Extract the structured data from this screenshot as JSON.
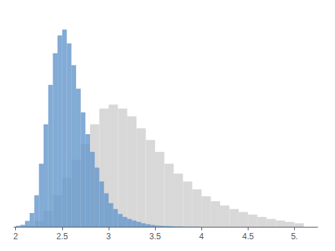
{
  "chart_data": {
    "type": "histogram",
    "series": [
      {
        "color": "#d8d8d8",
        "bins": [
          2.0,
          2.1,
          2.2,
          2.3,
          2.4,
          2.5,
          2.6,
          2.7,
          2.8,
          2.9,
          3.0,
          3.1,
          3.2,
          3.3,
          3.4,
          3.5,
          3.6,
          3.7,
          3.8,
          3.9,
          4.0,
          4.1,
          4.2,
          4.3,
          4.4,
          4.5,
          4.6,
          4.7,
          4.8,
          4.9,
          5.0,
          5.1
        ],
        "values": [
          0.0,
          0.005,
          0.03,
          0.08,
          0.16,
          0.25,
          0.34,
          0.42,
          0.52,
          0.6,
          0.62,
          0.6,
          0.56,
          0.5,
          0.44,
          0.38,
          0.32,
          0.27,
          0.23,
          0.19,
          0.155,
          0.13,
          0.108,
          0.09,
          0.075,
          0.062,
          0.05,
          0.04,
          0.032,
          0.025,
          0.018
        ]
      },
      {
        "color": "#6699cc",
        "bins": [
          2.0,
          2.05,
          2.1,
          2.15,
          2.2,
          2.25,
          2.3,
          2.35,
          2.4,
          2.45,
          2.5,
          2.55,
          2.6,
          2.65,
          2.7,
          2.75,
          2.8,
          2.85,
          2.9,
          2.95,
          3.0,
          3.05,
          3.1,
          3.15,
          3.2,
          3.25,
          3.3,
          3.35,
          3.4,
          3.45,
          3.5,
          3.55,
          3.6,
          3.65,
          3.7,
          3.75,
          3.8,
          3.85,
          3.9,
          3.95,
          4.0
        ],
        "values": [
          0.005,
          0.01,
          0.03,
          0.07,
          0.16,
          0.32,
          0.52,
          0.72,
          0.88,
          0.97,
          1.0,
          0.93,
          0.82,
          0.7,
          0.58,
          0.47,
          0.38,
          0.3,
          0.23,
          0.17,
          0.12,
          0.09,
          0.065,
          0.05,
          0.04,
          0.032,
          0.025,
          0.018,
          0.013,
          0.009,
          0.006,
          0.005,
          0.004,
          0.003,
          0.002,
          0.002,
          0.001,
          0.001,
          0.001,
          0.0005
        ]
      }
    ],
    "xlim": [
      1.98,
      5.25
    ],
    "ylim": [
      0,
      1.08
    ],
    "xticks": [
      2,
      2.5,
      3,
      3.5,
      4,
      4.5,
      {
        "value": 5,
        "label": "5."
      }
    ],
    "tick_labels": "x",
    "grid": false
  }
}
